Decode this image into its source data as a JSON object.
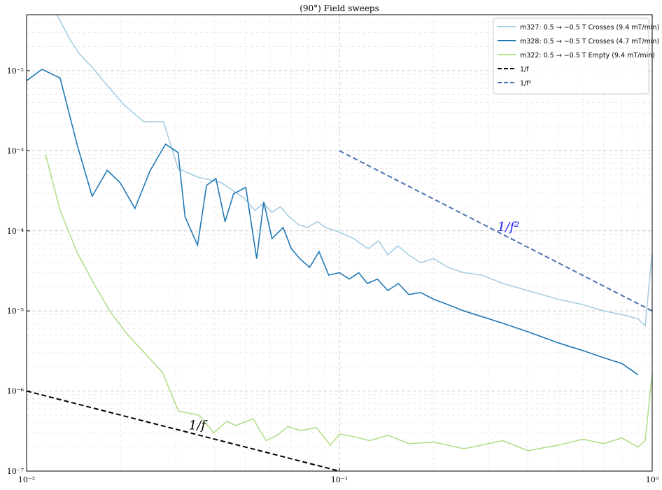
{
  "chart_data": {
    "type": "line",
    "title": "(90°) Field sweeps",
    "xlabel": "",
    "ylabel": "",
    "xscale": "log",
    "yscale": "log",
    "xlim": [
      0.01,
      1
    ],
    "ylim": [
      1e-07,
      0.05
    ],
    "grid": true,
    "legend_position": "top-right",
    "x_tick_labels": [
      "10⁻²",
      "10⁻¹",
      "10⁰"
    ],
    "y_tick_labels": [
      "10⁻⁷",
      "10⁻⁶",
      "10⁻⁵",
      "10⁻⁴",
      "10⁻³",
      "10⁻²"
    ],
    "series": [
      {
        "name": "m327: 0.5 → −0.5 T Crosses (9.4 mT/min)",
        "color": "#a6cee3",
        "x": [
          0.0125,
          0.0138,
          0.0148,
          0.0162,
          0.0179,
          0.0204,
          0.0237,
          0.0274,
          0.0305,
          0.0352,
          0.0419,
          0.0494,
          0.0537,
          0.0572,
          0.0608,
          0.0647,
          0.0691,
          0.0739,
          0.0789,
          0.0851,
          0.0903,
          0.0975,
          0.1042,
          0.1111,
          0.1235,
          0.1333,
          0.1429,
          0.1538,
          0.1667,
          0.1818,
          0.2,
          0.2222,
          0.25,
          0.2857,
          0.3333,
          0.4,
          0.5,
          0.6,
          0.7,
          0.8,
          0.9,
          0.95,
          1.0
        ],
        "y": [
          0.05,
          0.024,
          0.016,
          0.011,
          0.0069,
          0.0038,
          0.0023,
          0.0023,
          0.0006,
          0.00047,
          0.0004,
          0.00026,
          0.00018,
          0.00022,
          0.00017,
          0.0002,
          0.00015,
          0.00012,
          0.00011,
          0.00013,
          0.00011,
          0.0001,
          9e-05,
          8e-05,
          6e-05,
          7.5e-05,
          5e-05,
          6.5e-05,
          5e-05,
          4e-05,
          4.5e-05,
          3.5e-05,
          3e-05,
          2.8e-05,
          2.2e-05,
          1.8e-05,
          1.4e-05,
          1.2e-05,
          1e-05,
          9e-06,
          8e-06,
          6.5e-06,
          5.5e-05
        ]
      },
      {
        "name": "m328: 0.5 → −0.5 T Crosses (4.7 mT/min)",
        "color": "#1f78b4",
        "x": [
          0.01,
          0.0112,
          0.0128,
          0.0145,
          0.0162,
          0.0181,
          0.0199,
          0.0222,
          0.0248,
          0.0278,
          0.0305,
          0.0321,
          0.0352,
          0.0376,
          0.0403,
          0.0431,
          0.0459,
          0.0502,
          0.0544,
          0.0573,
          0.0609,
          0.0661,
          0.0702,
          0.0747,
          0.0803,
          0.0861,
          0.0924,
          0.1,
          0.1076,
          0.1153,
          0.1228,
          0.1323,
          0.1428,
          0.1543,
          0.1667,
          0.1818,
          0.2,
          0.2222,
          0.25,
          0.2857,
          0.3333,
          0.4,
          0.5,
          0.6,
          0.7,
          0.8,
          0.9
        ],
        "y": [
          0.0075,
          0.0104,
          0.0081,
          0.0012,
          0.00027,
          0.00057,
          0.0004,
          0.00019,
          0.00056,
          0.00121,
          0.00095,
          0.00015,
          6.6e-05,
          0.00037,
          0.00045,
          0.00013,
          0.00029,
          0.00035,
          4.5e-05,
          0.00023,
          8e-05,
          0.00011,
          6e-05,
          4.5e-05,
          3.5e-05,
          5.5e-05,
          2.8e-05,
          3e-05,
          2.5e-05,
          3e-05,
          2.2e-05,
          2.5e-05,
          1.8e-05,
          2.2e-05,
          1.6e-05,
          1.7e-05,
          1.4e-05,
          1.2e-05,
          1e-05,
          8.5e-06,
          7e-06,
          5.5e-06,
          4e-06,
          3.2e-06,
          2.6e-06,
          2.2e-06,
          1.6e-06
        ]
      },
      {
        "name": "m322: 0.5 → −0.5 T Empty (9.4 mT/min)",
        "color": "#b2df8a",
        "x": [
          0.0115,
          0.0128,
          0.0145,
          0.0164,
          0.0186,
          0.0209,
          0.0238,
          0.0272,
          0.0306,
          0.0355,
          0.0397,
          0.0437,
          0.0467,
          0.0529,
          0.0583,
          0.0633,
          0.0684,
          0.0753,
          0.0844,
          0.0937,
          0.1,
          0.1111,
          0.125,
          0.1429,
          0.1667,
          0.2,
          0.25,
          0.3333,
          0.4,
          0.5,
          0.6,
          0.7,
          0.8,
          0.9,
          0.95,
          1.0
        ],
        "y": [
          0.0009,
          0.00018,
          5.4e-05,
          2.2e-05,
          9.5e-06,
          5.2e-06,
          3e-06,
          1.7e-06,
          5.6e-07,
          5e-07,
          3e-07,
          4.2e-07,
          3.7e-07,
          4.5e-07,
          2.4e-07,
          2.8e-07,
          3.6e-07,
          3.2e-07,
          3.5e-07,
          2.1e-07,
          2.9e-07,
          2.7e-07,
          2.4e-07,
          2.8e-07,
          2.2e-07,
          2.3e-07,
          1.9e-07,
          2.4e-07,
          1.8e-07,
          2.1e-07,
          2.5e-07,
          2.2e-07,
          2.6e-07,
          2e-07,
          2.4e-07,
          1.7e-06
        ]
      },
      {
        "name": "1/f",
        "color": "#000000",
        "dashed": true,
        "x": [
          0.01,
          0.1
        ],
        "y": [
          1e-06,
          1e-07
        ]
      },
      {
        "name": "1/f²",
        "color": "#4c72b0",
        "dashed": true,
        "x": [
          0.1,
          1
        ],
        "y": [
          0.001,
          1e-05
        ]
      }
    ],
    "annotations": [
      {
        "text": "1/f",
        "x": 0.033,
        "y": 3.3e-07,
        "color": "#000000"
      },
      {
        "text": "1/f²",
        "x": 0.32,
        "y": 0.0001,
        "color": "#1a1aff"
      }
    ]
  }
}
